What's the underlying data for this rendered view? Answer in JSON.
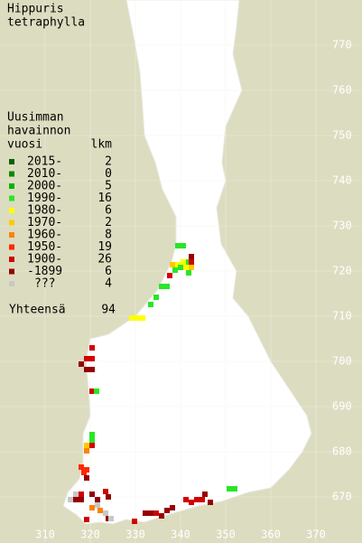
{
  "title": [
    "Hippuris",
    "tetraphylla"
  ],
  "legend": {
    "heading": [
      "Uusimman",
      "havainnon",
      "vuosi"
    ],
    "count_heading": "lkm",
    "items": [
      {
        "label": "2015-",
        "count": "2",
        "color": "#006400"
      },
      {
        "label": "2010-",
        "count": "0",
        "color": "#008c00"
      },
      {
        "label": "2000-",
        "count": "5",
        "color": "#00b400"
      },
      {
        "label": "1990-",
        "count": "16",
        "color": "#28e628"
      },
      {
        "label": "1980-",
        "count": "6",
        "color": "#ffff00"
      },
      {
        "label": "1970-",
        "count": "2",
        "color": "#ffc800"
      },
      {
        "label": "1960-",
        "count": "8",
        "color": "#ff8200"
      },
      {
        "label": "1950-",
        "count": "19",
        "color": "#ff2800"
      },
      {
        "label": "1900-",
        "count": "26",
        "color": "#d20000"
      },
      {
        "label": "-1899",
        "count": "6",
        "color": "#960000"
      },
      {
        "label": "???",
        "count": "4",
        "color": "#c8c8c8"
      }
    ],
    "total_label": "Yhteensä",
    "total": "94"
  },
  "grid": {
    "north": [
      "770",
      "760",
      "750",
      "740",
      "730",
      "720",
      "710",
      "700",
      "690",
      "680",
      "670"
    ],
    "east": [
      "310",
      "320",
      "330",
      "340",
      "350",
      "360",
      "370"
    ]
  }
}
